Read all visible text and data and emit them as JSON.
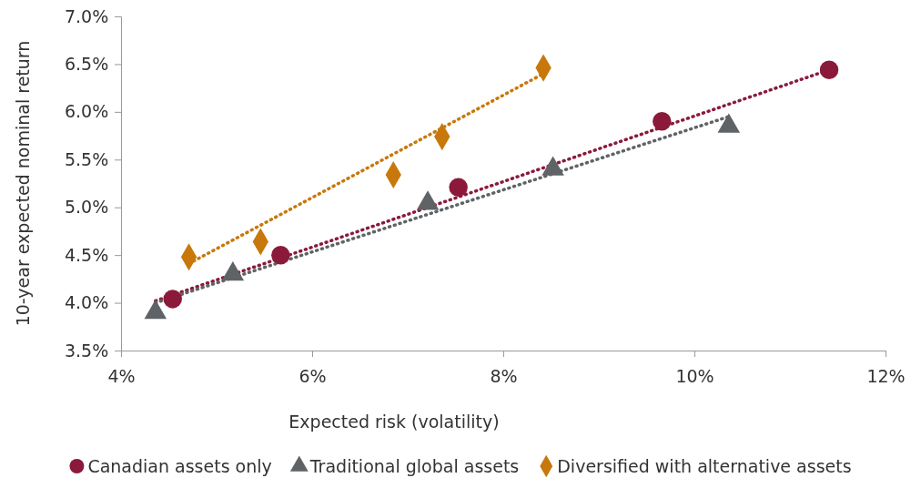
{
  "chart_data": {
    "type": "scatter",
    "xlabel": "Expected risk (volatility)",
    "ylabel": "10-year expected nominal return",
    "xlim": [
      4,
      12
    ],
    "xticks": [
      {
        "value": 4,
        "label": "4%"
      },
      {
        "value": 6,
        "label": "6%"
      },
      {
        "value": 8,
        "label": "8%"
      },
      {
        "value": 10,
        "label": "10%"
      },
      {
        "value": 12,
        "label": "12%"
      }
    ],
    "ylim": [
      3.5,
      7
    ],
    "yticks": [
      {
        "value": 3.5,
        "label": "3.5%"
      },
      {
        "value": 4,
        "label": "4.0%"
      },
      {
        "value": 4.5,
        "label": "4.5%"
      },
      {
        "value": 5,
        "label": "5.0%"
      },
      {
        "value": 5.5,
        "label": "5.5%"
      },
      {
        "value": 6,
        "label": "6.0%"
      },
      {
        "value": 6.5,
        "label": "6.5%"
      },
      {
        "value": 7,
        "label": "7.0%"
      }
    ],
    "grid": false,
    "legend": "bottom",
    "series": [
      {
        "type": "line",
        "color": "#8b1a3a",
        "line_style": "dotted",
        "marker": "none",
        "x": [
          4.36,
          11.41
        ],
        "values": [
          4.02,
          6.44
        ]
      },
      {
        "type": "line",
        "color": "#5f6366",
        "line_style": "dotted",
        "marker": "none",
        "x": [
          4.36,
          10.36
        ],
        "values": [
          4.0,
          5.95
        ]
      },
      {
        "type": "line",
        "color": "#c8780a",
        "line_style": "dotted",
        "marker": "none",
        "x": [
          4.71,
          8.42
        ],
        "values": [
          4.41,
          6.4
        ]
      },
      {
        "name": "Canadian assets only",
        "color": "#8b1a3a",
        "marker": "circle",
        "x": [
          4.54,
          5.67,
          7.53,
          9.66,
          11.41
        ],
        "values": [
          4.04,
          4.5,
          5.21,
          5.9,
          6.44
        ]
      },
      {
        "name": "Traditional global assets",
        "color": "#5f6366",
        "marker": "triangle",
        "x": [
          4.36,
          5.17,
          7.21,
          8.52,
          10.36
        ],
        "values": [
          3.9,
          4.3,
          5.04,
          5.4,
          5.85
        ]
      },
      {
        "name": "Diversified with alternative assets",
        "color": "#c8780a",
        "marker": "diamond",
        "x": [
          4.71,
          5.46,
          6.85,
          7.36,
          8.42
        ],
        "values": [
          4.48,
          4.64,
          5.34,
          5.74,
          6.46
        ]
      }
    ]
  }
}
